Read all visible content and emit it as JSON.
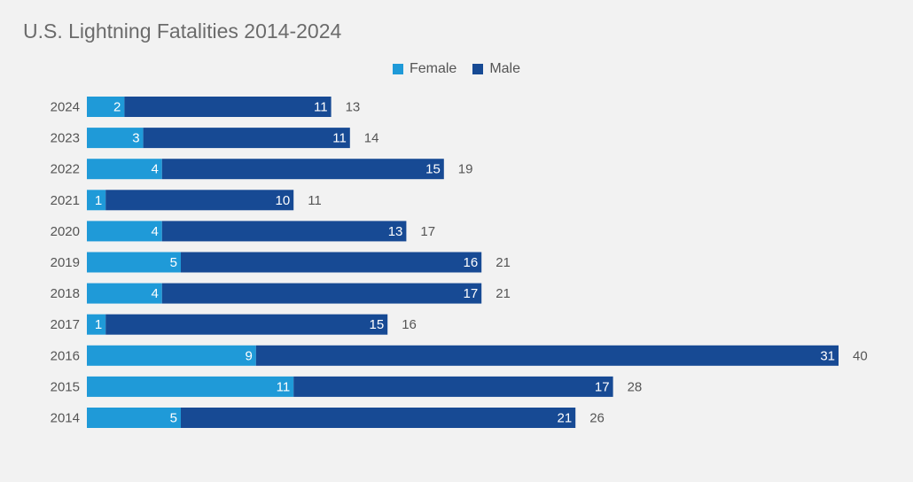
{
  "chart_data": {
    "type": "bar",
    "orientation": "horizontal",
    "stacked": true,
    "title": "U.S. Lightning Fatalities 2014-2024",
    "xlabel": "",
    "ylabel": "",
    "xlim": [
      0,
      40
    ],
    "grid": false,
    "legend_position": "top-center",
    "categories": [
      "2024",
      "2023",
      "2022",
      "2021",
      "2020",
      "2019",
      "2018",
      "2017",
      "2016",
      "2015",
      "2014"
    ],
    "series": [
      {
        "name": "Female",
        "color": "#1f9ad8",
        "values": [
          2,
          3,
          4,
          1,
          4,
          5,
          4,
          1,
          9,
          11,
          5
        ]
      },
      {
        "name": "Male",
        "color": "#174a94",
        "values": [
          11,
          11,
          15,
          10,
          13,
          16,
          17,
          15,
          31,
          17,
          21
        ]
      }
    ],
    "totals": [
      13,
      14,
      19,
      11,
      17,
      21,
      21,
      16,
      40,
      28,
      26
    ]
  }
}
